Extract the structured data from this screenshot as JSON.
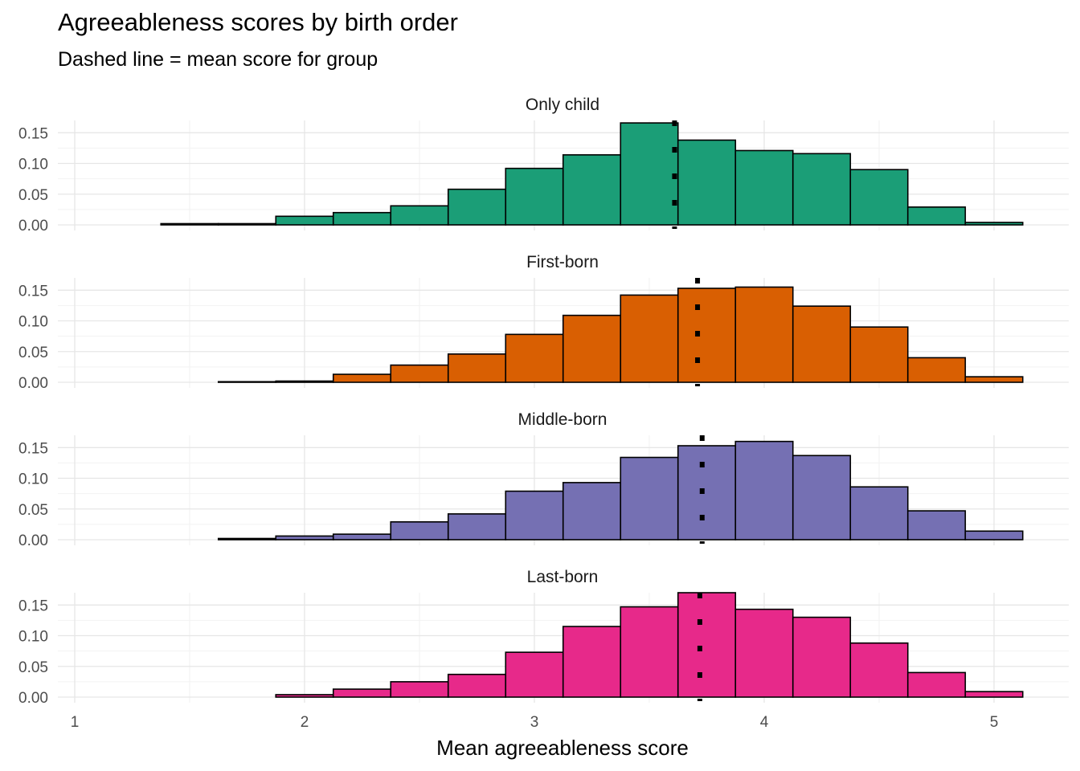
{
  "chart_data": {
    "type": "bar",
    "title": "Agreeableness scores by birth order",
    "subtitle": "Dashed line = mean score for group",
    "xlabel": "Mean agreeableness score",
    "ylabel": "",
    "xlim": [
      1,
      5
    ],
    "ylim": [
      0,
      0.17
    ],
    "x_ticks": [
      1,
      2,
      3,
      4,
      5
    ],
    "y_ticks": [
      "0.00",
      "0.05",
      "0.10",
      "0.15"
    ],
    "grid": true,
    "bin_edges": [
      1.125,
      1.375,
      1.625,
      1.875,
      2.125,
      2.375,
      2.625,
      2.875,
      3.125,
      3.375,
      3.625,
      3.875,
      4.125,
      4.375,
      4.625,
      4.875,
      5.125
    ],
    "panels": [
      {
        "name": "Only child",
        "color": "#1b9e77",
        "mean": 3.61,
        "values": [
          0.0,
          0.002,
          0.002,
          0.014,
          0.02,
          0.031,
          0.058,
          0.092,
          0.114,
          0.166,
          0.138,
          0.121,
          0.116,
          0.09,
          0.029,
          0.004
        ]
      },
      {
        "name": "First-born",
        "color": "#d95f02",
        "mean": 3.71,
        "values": [
          0.0,
          0.0,
          0.001,
          0.002,
          0.013,
          0.028,
          0.046,
          0.078,
          0.109,
          0.142,
          0.153,
          0.155,
          0.124,
          0.09,
          0.04,
          0.009
        ]
      },
      {
        "name": "Middle-born",
        "color": "#7570b3",
        "mean": 3.73,
        "values": [
          0.0,
          0.0,
          0.002,
          0.006,
          0.009,
          0.029,
          0.042,
          0.079,
          0.093,
          0.134,
          0.153,
          0.16,
          0.137,
          0.086,
          0.047,
          0.014
        ]
      },
      {
        "name": "Last-born",
        "color": "#e7298a",
        "mean": 3.72,
        "values": [
          0.0,
          0.0,
          0.0,
          0.004,
          0.013,
          0.025,
          0.037,
          0.073,
          0.115,
          0.147,
          0.17,
          0.143,
          0.13,
          0.088,
          0.04,
          0.009
        ]
      }
    ]
  }
}
